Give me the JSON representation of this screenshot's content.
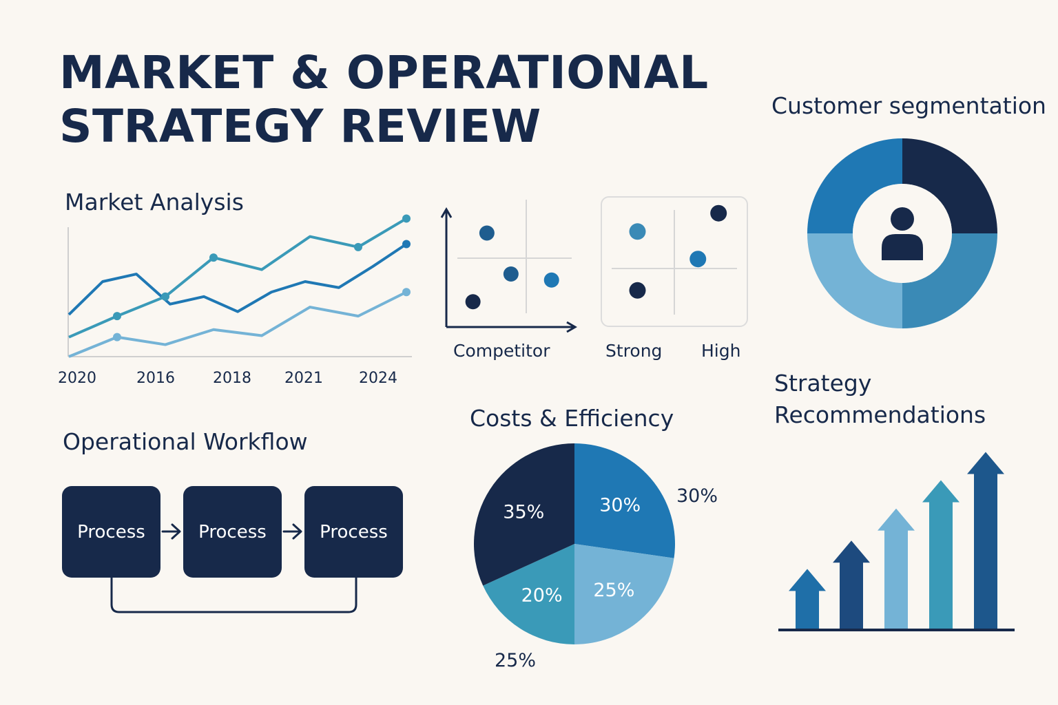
{
  "title": {
    "line1": "MARKET & OPERATIONAL",
    "line2": "STRATEGY REVIEW"
  },
  "colors": {
    "navy": "#17294a",
    "blue": "#1f78b4",
    "teal": "#3a9ab8",
    "light_blue": "#74b3d6",
    "steel": "#1d578c",
    "background": "#faf7f2"
  },
  "market_analysis": {
    "label": "Market Analysis",
    "x_ticks": [
      "2020",
      "2016",
      "2018",
      "2021",
      "2024"
    ]
  },
  "competitor_matrix": {
    "label": "Competitor"
  },
  "strength_matrix": {
    "left_label": "Strong",
    "right_label": "High"
  },
  "customer_segmentation": {
    "label": "Customer segmentation",
    "icon": "person-icon"
  },
  "operational_workflow": {
    "label": "Operational Workflow",
    "steps": [
      "Process",
      "Process",
      "Process"
    ]
  },
  "costs_efficiency": {
    "label": "Costs & Efficiency"
  },
  "strategy_recommendations": {
    "line1": "Strategy",
    "line2": "Recommendations"
  },
  "chart_data": [
    {
      "type": "line",
      "x": [
        "2020",
        "2016",
        "2018",
        "2021",
        "2024"
      ],
      "ylim": [
        0,
        100
      ],
      "series": [
        {
          "values": [
            [
              0,
              28
            ],
            [
              1,
              50
            ],
            [
              2,
              55
            ],
            [
              3,
              35
            ],
            [
              4,
              40
            ],
            [
              5,
              30
            ],
            [
              6,
              43
            ],
            [
              7,
              50
            ],
            [
              8,
              46
            ],
            [
              9,
              60
            ],
            [
              10,
              75
            ]
          ]
        },
        {
          "values": [
            [
              0,
              13
            ],
            [
              1,
              27
            ],
            [
              2,
              40
            ],
            [
              3,
              66
            ],
            [
              4,
              58
            ],
            [
              5,
              80
            ],
            [
              6,
              73
            ],
            [
              7,
              92
            ]
          ]
        },
        {
          "values": [
            [
              0,
              0
            ],
            [
              1,
              13
            ],
            [
              2,
              8
            ],
            [
              3,
              18
            ],
            [
              4,
              14
            ],
            [
              5,
              33
            ],
            [
              6,
              27
            ],
            [
              7,
              43
            ]
          ]
        }
      ]
    },
    {
      "type": "scatter",
      "points": [
        {
          "x": 32,
          "y": 78,
          "group": "blue"
        },
        {
          "x": 51,
          "y": 44,
          "group": "blue"
        },
        {
          "x": 83,
          "y": 39,
          "group": "teal"
        },
        {
          "x": 21,
          "y": 21,
          "group": "navy"
        }
      ]
    },
    {
      "type": "scatter",
      "points": [
        {
          "x": 25,
          "y": 73,
          "group": "teal"
        },
        {
          "x": 80,
          "y": 87,
          "group": "navy"
        },
        {
          "x": 66,
          "y": 52,
          "group": "blue"
        },
        {
          "x": 25,
          "y": 28,
          "group": "navy"
        }
      ]
    },
    {
      "type": "pie",
      "title": "Customer segmentation",
      "slices": [
        {
          "value": 25,
          "color": "#17294a"
        },
        {
          "value": 25,
          "color": "#3a8ab6"
        },
        {
          "value": 25,
          "color": "#74b3d6"
        },
        {
          "value": 25,
          "color": "#1f78b4"
        }
      ]
    },
    {
      "type": "pie",
      "title": "Costs & Efficiency",
      "slices": [
        {
          "label": "30%",
          "value": 30,
          "color": "#1f78b4"
        },
        {
          "label": "25%",
          "value": 25,
          "color": "#74b3d6"
        },
        {
          "label": "20%",
          "value": 20,
          "color": "#3a9ab8"
        },
        {
          "label": "35%",
          "value": 35,
          "color": "#17294a"
        }
      ],
      "external_labels": [
        "30%",
        "25%"
      ]
    },
    {
      "type": "bar",
      "title": "Strategy Recommendations",
      "values": [
        32,
        47,
        64,
        79,
        94
      ],
      "colors": [
        "#1f6fa8",
        "#1d4a7e",
        "#74b3d6",
        "#3a9ab8",
        "#1d578c"
      ]
    }
  ]
}
